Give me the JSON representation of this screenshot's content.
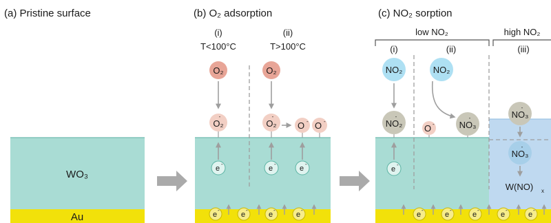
{
  "panels": {
    "a": {
      "title": "(a) Pristine surface",
      "layer_label": "WO₃",
      "metal_label": "Au"
    },
    "b": {
      "title": "(b) O₂ adsorption",
      "cases": [
        {
          "id": "(i)",
          "cond": "T<100°C"
        },
        {
          "id": "(ii)",
          "cond": "T>100°C"
        }
      ]
    },
    "c": {
      "title": "(c) NO₂ sorption",
      "group_low": "low NO₂",
      "group_high": "high NO₂",
      "cases": [
        {
          "id": "(i)"
        },
        {
          "id": "(ii)"
        },
        {
          "id": "(iii)"
        }
      ],
      "product": "W(NO)",
      "product_sub": "x"
    }
  },
  "species": {
    "o2": "O₂",
    "o2_minus": "O₂",
    "o_minus": "O",
    "no2": "NO₂",
    "no2_minus": "NO₂",
    "no3_minus": "NO₃",
    "electron": "e",
    "minus": "-"
  },
  "colors": {
    "wo3": "#a9dcd4",
    "wo3_edge": "#7fc4b8",
    "au": "#f2e10a",
    "o2_fill": "#e8a597",
    "o2_minus_fill": "#f2cfc4",
    "no2_fill": "#aee0f3",
    "no3_fill": "#c9c7b8",
    "electron_fill": "#dff3ef",
    "electron_au_fill": "#f6ec8a",
    "arrow": "#9e9e9e",
    "high_no2_bg": "#bfd9f0"
  }
}
